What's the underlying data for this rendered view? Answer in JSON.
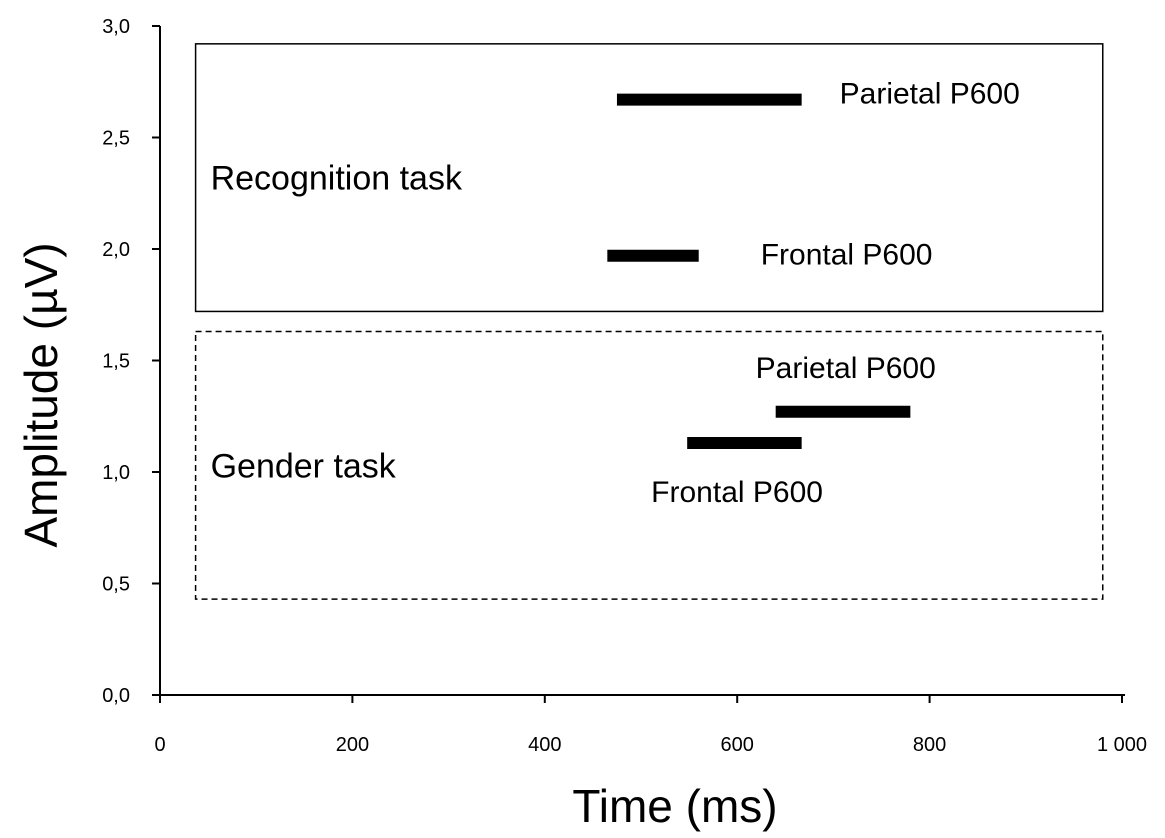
{
  "chart_data": {
    "type": "bar",
    "orientation": "horizontal-ranges",
    "xlabel": "Time (ms)",
    "ylabel": "Amplitude (µV)",
    "xlim": [
      0,
      1000
    ],
    "ylim": [
      0,
      3.0
    ],
    "x_ticks": [
      "0",
      "200",
      "400",
      "600",
      "800",
      "1 000"
    ],
    "y_ticks": [
      "0,0",
      "0,5",
      "1,0",
      "1,5",
      "2,0",
      "2,5",
      "3,0"
    ],
    "grid": false,
    "groups": [
      {
        "name": "Recognition task",
        "box_style": "solid",
        "box_y_range": [
          1.72,
          2.92
        ],
        "box_x_range": [
          37,
          980
        ]
      },
      {
        "name": "Gender task",
        "box_style": "dashed",
        "box_y_range": [
          0.43,
          1.63
        ],
        "box_x_range": [
          37,
          980
        ]
      }
    ],
    "series": [
      {
        "name": "Parietal P600",
        "group": "Recognition task",
        "x_start": 475,
        "x_end": 667,
        "y": 2.67
      },
      {
        "name": "Frontal P600",
        "group": "Recognition task",
        "x_start": 465,
        "x_end": 560,
        "y": 1.97
      },
      {
        "name": "Parietal P600",
        "group": "Gender task",
        "x_start": 640,
        "x_end": 780,
        "y": 1.27
      },
      {
        "name": "Frontal P600",
        "group": "Gender task",
        "x_start": 548,
        "x_end": 667,
        "y": 1.13
      }
    ]
  }
}
